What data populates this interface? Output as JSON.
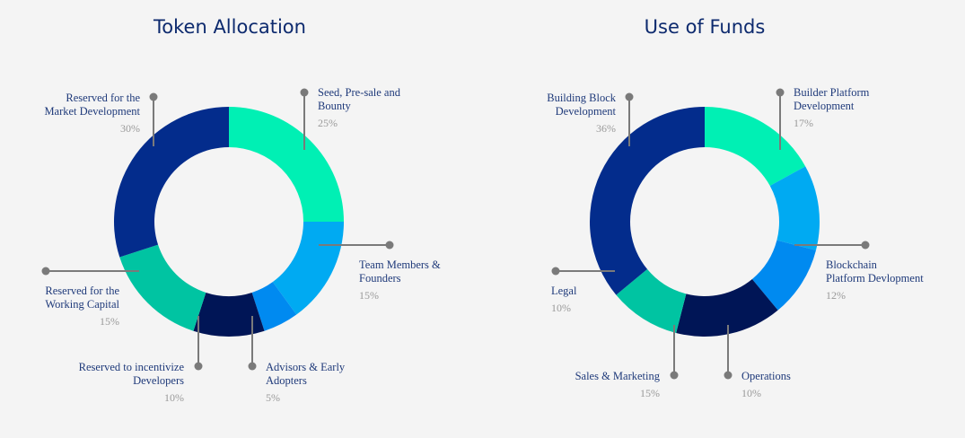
{
  "charts": [
    {
      "title": "Token Allocation",
      "segments": [
        {
          "label": "Seed, Pre-sale and Bounty",
          "label_lines": [
            "Seed, Pre-sale and",
            "Bounty"
          ],
          "value": 25,
          "pct": "25%",
          "color": "#00f0b4"
        },
        {
          "label": "Team Members & Founders",
          "label_lines": [
            "Team Members &",
            "Founders"
          ],
          "value": 15,
          "pct": "15%",
          "color": "#00aaf2"
        },
        {
          "label": "Advisors & Early Adopters",
          "label_lines": [
            "Advisors & Early",
            "Adopters"
          ],
          "value": 5,
          "pct": "5%",
          "color": "#008af0"
        },
        {
          "label": "Reserved to incentivize Developers",
          "label_lines": [
            "Reserved to incentivize",
            "Developers"
          ],
          "value": 10,
          "pct": "10%",
          "color": "#001556"
        },
        {
          "label": "Reserved for the Working Capital",
          "label_lines": [
            "Reserved for the",
            "Working Capital"
          ],
          "value": 15,
          "pct": "15%",
          "color": "#00c4a2"
        },
        {
          "label": "Reserved for the Market Development",
          "label_lines": [
            "Reserved for the",
            "Market Development"
          ],
          "value": 30,
          "pct": "30%",
          "color": "#032c8c"
        }
      ]
    },
    {
      "title": "Use of Funds",
      "segments": [
        {
          "label": "Builder Platform Development",
          "label_lines": [
            "Builder Platform",
            "Development"
          ],
          "value": 17,
          "pct": "17%",
          "color": "#00f0b4"
        },
        {
          "label": "Blockchain Platform Devlopment",
          "label_lines": [
            "Blockchain",
            "Platform Devlopment"
          ],
          "value": 12,
          "pct": "12%",
          "color": "#00aaf2"
        },
        {
          "label": "Operations",
          "label_lines": [
            "Operations"
          ],
          "value": 10,
          "pct": "10%",
          "color": "#008af0"
        },
        {
          "label": "Sales & Marketing",
          "label_lines": [
            "Sales & Marketing"
          ],
          "value": 15,
          "pct": "15%",
          "color": "#001556"
        },
        {
          "label": "Legal",
          "label_lines": [
            "Legal"
          ],
          "value": 10,
          "pct": "10%",
          "color": "#00c4a2"
        },
        {
          "label": "Building Block Development",
          "label_lines": [
            "Building Block",
            "Development"
          ],
          "value": 36,
          "pct": "36%",
          "color": "#032c8c"
        }
      ]
    }
  ],
  "chart_data": [
    {
      "type": "pie",
      "title": "Token Allocation",
      "categories": [
        "Seed, Pre-sale and Bounty",
        "Team Members & Founders",
        "Advisors & Early Adopters",
        "Reserved to incentivize Developers",
        "Reserved for the Working Capital",
        "Reserved for the Market Development"
      ],
      "values": [
        25,
        15,
        5,
        10,
        15,
        30
      ],
      "unit": "%"
    },
    {
      "type": "pie",
      "title": "Use of Funds",
      "categories": [
        "Builder Platform Development",
        "Blockchain Platform Devlopment",
        "Operations",
        "Sales & Marketing",
        "Legal",
        "Building Block Development"
      ],
      "values": [
        17,
        12,
        10,
        15,
        10,
        36
      ],
      "unit": "%"
    }
  ],
  "style": {
    "leader_color": "#7a7a7a",
    "title_color": "#0d2a6e"
  }
}
